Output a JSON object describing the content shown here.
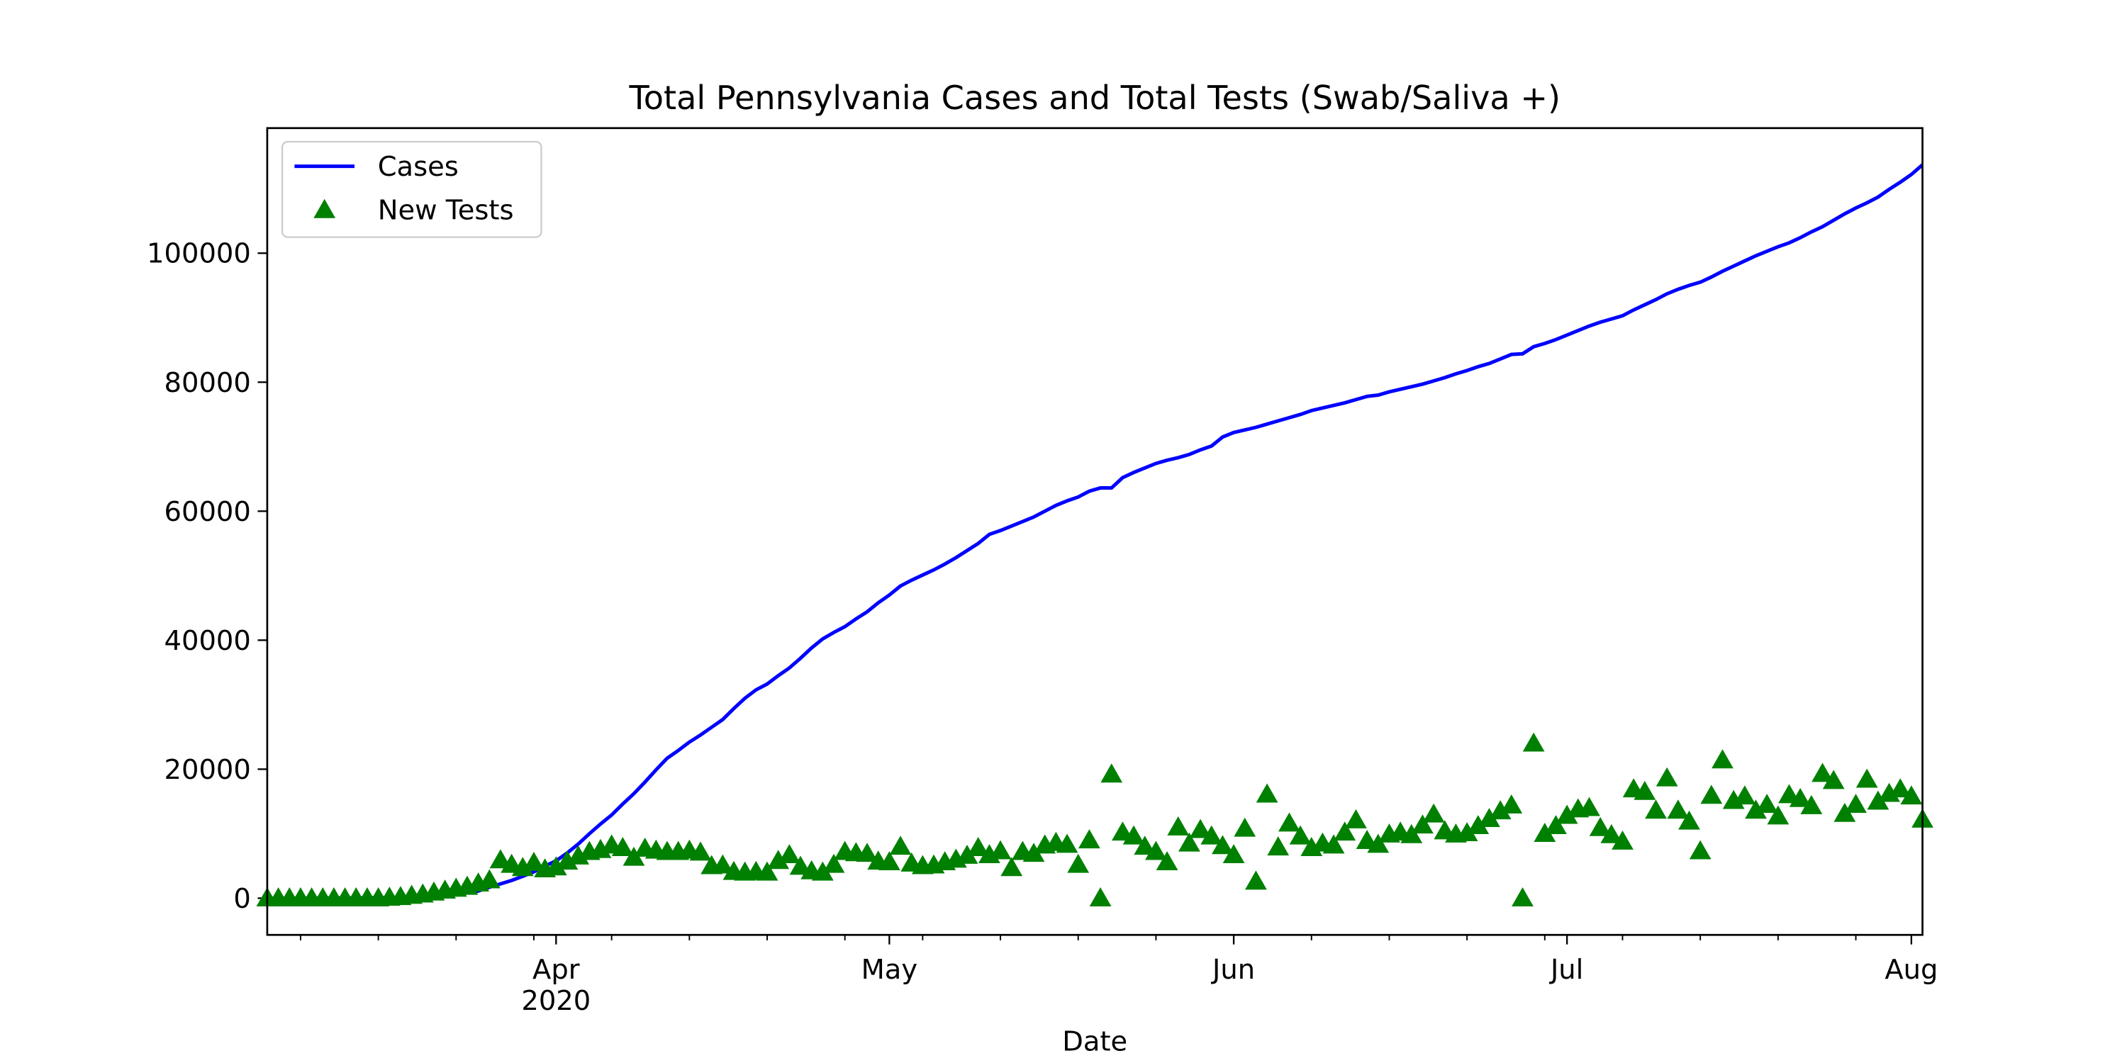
{
  "chart_data": {
    "type": "line",
    "title": "Total Pennsylvania Cases and Total Tests (Swab/Saliva +)",
    "xlabel": "Date",
    "x": [
      "2020-03-06",
      "2020-03-07",
      "2020-03-08",
      "2020-03-09",
      "2020-03-10",
      "2020-03-11",
      "2020-03-12",
      "2020-03-13",
      "2020-03-14",
      "2020-03-15",
      "2020-03-16",
      "2020-03-17",
      "2020-03-18",
      "2020-03-19",
      "2020-03-20",
      "2020-03-21",
      "2020-03-22",
      "2020-03-23",
      "2020-03-24",
      "2020-03-25",
      "2020-03-26",
      "2020-03-27",
      "2020-03-28",
      "2020-03-29",
      "2020-03-30",
      "2020-03-31",
      "2020-04-01",
      "2020-04-02",
      "2020-04-03",
      "2020-04-04",
      "2020-04-05",
      "2020-04-06",
      "2020-04-07",
      "2020-04-08",
      "2020-04-09",
      "2020-04-10",
      "2020-04-11",
      "2020-04-12",
      "2020-04-13",
      "2020-04-14",
      "2020-04-15",
      "2020-04-16",
      "2020-04-17",
      "2020-04-18",
      "2020-04-19",
      "2020-04-20",
      "2020-04-21",
      "2020-04-22",
      "2020-04-23",
      "2020-04-24",
      "2020-04-25",
      "2020-04-26",
      "2020-04-27",
      "2020-04-28",
      "2020-04-29",
      "2020-04-30",
      "2020-05-01",
      "2020-05-02",
      "2020-05-03",
      "2020-05-04",
      "2020-05-05",
      "2020-05-06",
      "2020-05-07",
      "2020-05-08",
      "2020-05-09",
      "2020-05-10",
      "2020-05-11",
      "2020-05-12",
      "2020-05-13",
      "2020-05-14",
      "2020-05-15",
      "2020-05-16",
      "2020-05-17",
      "2020-05-18",
      "2020-05-19",
      "2020-05-20",
      "2020-05-21",
      "2020-05-22",
      "2020-05-23",
      "2020-05-24",
      "2020-05-25",
      "2020-05-26",
      "2020-05-27",
      "2020-05-28",
      "2020-05-29",
      "2020-05-30",
      "2020-05-31",
      "2020-06-01",
      "2020-06-02",
      "2020-06-03",
      "2020-06-04",
      "2020-06-05",
      "2020-06-06",
      "2020-06-07",
      "2020-06-08",
      "2020-06-09",
      "2020-06-10",
      "2020-06-11",
      "2020-06-12",
      "2020-06-13",
      "2020-06-14",
      "2020-06-15",
      "2020-06-16",
      "2020-06-17",
      "2020-06-18",
      "2020-06-19",
      "2020-06-20",
      "2020-06-21",
      "2020-06-22",
      "2020-06-23",
      "2020-06-24",
      "2020-06-25",
      "2020-06-26",
      "2020-06-27",
      "2020-06-28",
      "2020-06-29",
      "2020-06-30",
      "2020-07-01",
      "2020-07-02",
      "2020-07-03",
      "2020-07-04",
      "2020-07-05",
      "2020-07-06",
      "2020-07-07",
      "2020-07-08",
      "2020-07-09",
      "2020-07-10",
      "2020-07-11",
      "2020-07-12",
      "2020-07-13",
      "2020-07-14",
      "2020-07-15",
      "2020-07-16",
      "2020-07-17",
      "2020-07-18",
      "2020-07-19",
      "2020-07-20",
      "2020-07-21",
      "2020-07-22",
      "2020-07-23",
      "2020-07-24",
      "2020-07-25",
      "2020-07-26",
      "2020-07-27",
      "2020-07-28",
      "2020-07-29",
      "2020-07-30",
      "2020-07-31",
      "2020-08-01",
      "2020-08-02"
    ],
    "series": [
      {
        "name": "Cases",
        "color": "#0000ff",
        "style": "line",
        "values": [
          0,
          0,
          0,
          10,
          10,
          10,
          20,
          30,
          40,
          60,
          80,
          100,
          150,
          200,
          270,
          370,
          480,
          640,
          850,
          1120,
          1690,
          2220,
          2750,
          3390,
          4090,
          4970,
          5800,
          7000,
          8400,
          10000,
          11500,
          12900,
          14600,
          16200,
          18000,
          19900,
          21700,
          22900,
          24200,
          25300,
          26500,
          27700,
          29400,
          31000,
          32300,
          33200,
          34500,
          35700,
          37200,
          38800,
          40200,
          41200,
          42100,
          43300,
          44400,
          45800,
          47000,
          48400,
          49300,
          50100,
          50900,
          51800,
          52800,
          53900,
          55000,
          56400,
          57000,
          57700,
          58400,
          59100,
          60000,
          60900,
          61600,
          62200,
          63100,
          63600,
          63600,
          65200,
          66000,
          66700,
          67400,
          67900,
          68300,
          68800,
          69500,
          70100,
          71500,
          72200,
          72600,
          73000,
          73500,
          74000,
          74500,
          75000,
          75600,
          76000,
          76400,
          76800,
          77300,
          77800,
          78000,
          78500,
          78900,
          79300,
          79700,
          80200,
          80700,
          81300,
          81800,
          82400,
          82900,
          83600,
          84300,
          84400,
          85500,
          86000,
          86600,
          87300,
          88000,
          88700,
          89300,
          89800,
          90300,
          91200,
          92000,
          92800,
          93700,
          94400,
          95000,
          95500,
          96300,
          97200,
          98000,
          98800,
          99600,
          100300,
          101000,
          101600,
          102400,
          103300,
          104100,
          105100,
          106100,
          107000,
          107800,
          108700,
          109900,
          111000,
          112200,
          113700
        ]
      },
      {
        "name": "New Tests",
        "color": "#008000",
        "style": "triangle",
        "values": [
          0,
          0,
          0,
          0,
          0,
          0,
          0,
          0,
          0,
          0,
          0,
          100,
          200,
          400,
          600,
          900,
          1200,
          1500,
          1800,
          2300,
          2800,
          5900,
          5200,
          4700,
          5500,
          4500,
          4800,
          5700,
          6500,
          7200,
          7500,
          8200,
          7800,
          6300,
          7700,
          7400,
          7200,
          7200,
          7400,
          7100,
          5000,
          5100,
          4100,
          4000,
          4100,
          4000,
          5800,
          6700,
          4900,
          4200,
          4000,
          5200,
          7200,
          7000,
          6900,
          5700,
          5600,
          8000,
          5400,
          5000,
          5100,
          5600,
          6000,
          6600,
          7800,
          6700,
          7300,
          4700,
          7200,
          6900,
          8200,
          8600,
          8300,
          5200,
          9000,
          0,
          19200,
          10200,
          9600,
          8000,
          7200,
          5600,
          11000,
          8500,
          10600,
          9600,
          8100,
          6700,
          10800,
          2600,
          16100,
          7900,
          11600,
          9600,
          7800,
          8500,
          8200,
          10200,
          12100,
          8900,
          8300,
          9900,
          10200,
          9800,
          11300,
          13000,
          10400,
          9900,
          10100,
          11200,
          12300,
          13500,
          14400,
          0,
          24000,
          10000,
          11200,
          12800,
          13800,
          14000,
          10900,
          9800,
          8800,
          16900,
          16500,
          13600,
          18600,
          13600,
          11900,
          7300,
          15900,
          21400,
          15100,
          15800,
          13600,
          14500,
          12700,
          16000,
          15400,
          14300,
          19300,
          18200,
          13100,
          14500,
          18400,
          15000,
          16200,
          16900,
          15800,
          12200
        ]
      }
    ],
    "xlim": [
      "2020-03-06",
      "2020-08-02"
    ],
    "xticks": [
      {
        "value": "2020-04-01",
        "label": "Apr\n2020"
      },
      {
        "value": "2020-05-01",
        "label": "May"
      },
      {
        "value": "2020-06-01",
        "label": "Jun"
      },
      {
        "value": "2020-07-01",
        "label": "Jul"
      },
      {
        "value": "2020-08-01",
        "label": "Aug"
      }
    ],
    "xminorticks": [
      "2020-03-09",
      "2020-03-16",
      "2020-03-23",
      "2020-03-30",
      "2020-04-06",
      "2020-04-13",
      "2020-04-20",
      "2020-04-27",
      "2020-05-04",
      "2020-05-11",
      "2020-05-18",
      "2020-05-25",
      "2020-06-08",
      "2020-06-15",
      "2020-06-22",
      "2020-06-29",
      "2020-07-06",
      "2020-07-13",
      "2020-07-20",
      "2020-07-27"
    ],
    "ylim": [
      -5690,
      119390
    ],
    "yticks": [
      0,
      20000,
      40000,
      60000,
      80000,
      100000
    ],
    "legend": "upper left"
  }
}
